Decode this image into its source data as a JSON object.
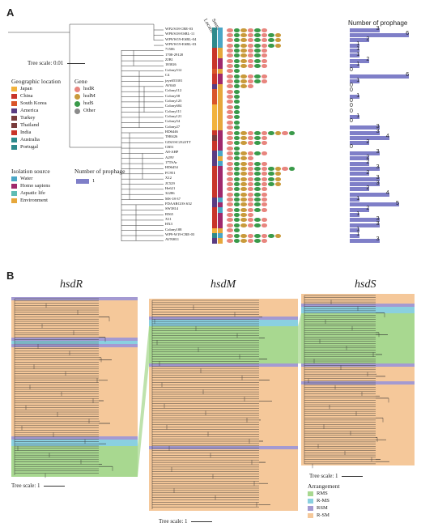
{
  "panel_a": {
    "label": "A",
    "column_headers": [
      "Location",
      "Source"
    ],
    "tree_scale": "Tree scale: 0.01",
    "bars_title": "Number of prophage",
    "strains": [
      {
        "name": "WP2/S18-CRE-03",
        "loc": "#2e8a8c",
        "src": "#4aa6c6",
        "genes": 3,
        "prophage": 3
      },
      {
        "name": "WP8/S18-ESBL-11",
        "loc": "#2e8a8c",
        "src": "#4aa6c6",
        "genes": 4,
        "prophage": 6
      },
      {
        "name": "WP9/W19-ESBL-04",
        "loc": "#2e8a8c",
        "src": "#4aa6c6",
        "genes": 4,
        "prophage": 2
      },
      {
        "name": "WP9/W19-ESBL-03",
        "loc": "#2e8a8c",
        "src": "#4aa6c6",
        "genes": 4,
        "prophage": 1
      },
      {
        "name": "71506",
        "loc": "#c9352a",
        "src": "#e6a73b",
        "genes": 3,
        "prophage": 1
      },
      {
        "name": "1708-29120",
        "loc": "#c9352a",
        "src": "#e6a73b",
        "genes": 3,
        "prophage": 1
      },
      {
        "name": "ZJB1",
        "loc": "#c9352a",
        "src": "#a0286c",
        "genes": 3,
        "prophage": 2
      },
      {
        "name": "183026",
        "loc": "#c9352a",
        "src": "#a0286c",
        "genes": 3,
        "prophage": 1
      },
      {
        "name": "Colony512",
        "loc": "#d9552a",
        "src": "#e6a73b",
        "genes": 1,
        "prophage": 0
      },
      {
        "name": "C4",
        "loc": "#c9352a",
        "src": "#a0286c",
        "genes": 3,
        "prophage": 6
      },
      {
        "name": "jzyz653301",
        "loc": "#c9352a",
        "src": "#a0286c",
        "genes": 3,
        "prophage": 1
      },
      {
        "name": "AV040",
        "loc": "#5a3c82",
        "src": "#e6a73b",
        "genes": 2,
        "prophage": 0
      },
      {
        "name": "Colony112",
        "loc": "#d9552a",
        "src": "#e6a73b",
        "genes": 1,
        "prophage": 0
      },
      {
        "name": "Colony58",
        "loc": "#d9552a",
        "src": "#e6a73b",
        "genes": 1,
        "prophage": 1
      },
      {
        "name": "Colony125",
        "loc": "#d9552a",
        "src": "#e6a73b",
        "genes": 1,
        "prophage": 0
      },
      {
        "name": "Colony604",
        "loc": "#f2b23c",
        "src": "#e6a73b",
        "genes": 1,
        "prophage": 0
      },
      {
        "name": "Colony111",
        "loc": "#f2b23c",
        "src": "#e6a73b",
        "genes": 1,
        "prophage": 0
      },
      {
        "name": "Colony121",
        "loc": "#f2b23c",
        "src": "#e6a73b",
        "genes": 1,
        "prophage": 1
      },
      {
        "name": "Colony54",
        "loc": "#f2b23c",
        "src": "#e6a73b",
        "genes": 1,
        "prophage": 0
      },
      {
        "name": "Colony27",
        "loc": "#f2b23c",
        "src": "#e6a73b",
        "genes": 1,
        "prophage": 3
      },
      {
        "name": "HD6446",
        "loc": "#c9352a",
        "src": "#a0286c",
        "genes": 5,
        "prophage": 3
      },
      {
        "name": "TH0426",
        "loc": "#7a3c3c",
        "src": "#a0286c",
        "genes": 3,
        "prophage": 4
      },
      {
        "name": "GD21SC2322TT",
        "loc": "#c9352a",
        "src": "#a0286c",
        "genes": 3,
        "prophage": 2
      },
      {
        "name": "CB51",
        "loc": "#c9352a",
        "src": "#a0286c",
        "genes": 1,
        "prophage": 0
      },
      {
        "name": "A8-AHP",
        "loc": "#5a3c82",
        "src": "#4aa6c6",
        "genes": 3,
        "prophage": 3
      },
      {
        "name": "A29V",
        "loc": "#5a3c82",
        "src": "#e6a73b",
        "genes": 2,
        "prophage": 2
      },
      {
        "name": "17TSAr",
        "loc": "#5a3c82",
        "src": "#4aa6c6",
        "genes": 3,
        "prophage": 2
      },
      {
        "name": "HD6454",
        "loc": "#c9352a",
        "src": "#a0286c",
        "genes": 5,
        "prophage": 3
      },
      {
        "name": "FC951",
        "loc": "#c9352a",
        "src": "#a0286c",
        "genes": 4,
        "prophage": 2
      },
      {
        "name": "X12",
        "loc": "#c9352a",
        "src": "#a0286c",
        "genes": 4,
        "prophage": 3
      },
      {
        "name": "JC529",
        "loc": "#c9352a",
        "src": "#a0286c",
        "genes": 4,
        "prophage": 3
      },
      {
        "name": "He621",
        "loc": "#c9352a",
        "src": "#a0286c",
        "genes": 3,
        "prophage": 2
      },
      {
        "name": "32286",
        "loc": "#c9352a",
        "src": "#a0286c",
        "genes": 3,
        "prophage": 4
      },
      {
        "name": "MS-18-37",
        "loc": "#5a3c82",
        "src": "#4aa6c6",
        "genes": 3,
        "prophage": 1
      },
      {
        "name": "FDAARGOS 632",
        "loc": "#5a3c82",
        "src": "#a0286c",
        "genes": 3,
        "prophage": 5
      },
      {
        "name": "SW3814",
        "loc": "#c9352a",
        "src": "#4aa6c6",
        "genes": 3,
        "prophage": 2
      },
      {
        "name": "B565",
        "loc": "#c9352a",
        "src": "#a0286c",
        "genes": 2,
        "prophage": 1
      },
      {
        "name": "X11",
        "loc": "#c9352a",
        "src": "#a0286c",
        "genes": 3,
        "prophage": 3
      },
      {
        "name": "HX3",
        "loc": "#c9352a",
        "src": "#a0286c",
        "genes": 3,
        "prophage": 3
      },
      {
        "name": "Colony108",
        "loc": "#f2b23c",
        "src": "#e6a73b",
        "genes": 1,
        "prophage": 1
      },
      {
        "name": "WP9-W19-CRE-03",
        "loc": "#2e8a8c",
        "src": "#4aa6c6",
        "genes": 4,
        "prophage": 1
      },
      {
        "name": "AVNH11",
        "loc": "#5a3c82",
        "src": "#e6a73b",
        "genes": 3,
        "prophage": 3
      }
    ],
    "legend_geo": {
      "title": "Geographic location",
      "items": [
        {
          "label": "Japan",
          "color": "#f2b23c"
        },
        {
          "label": "China",
          "color": "#c9352a"
        },
        {
          "label": "South Korea",
          "color": "#d9552a"
        },
        {
          "label": "America",
          "color": "#5a3c82"
        },
        {
          "label": "Turkey",
          "color": "#7a3c3c"
        },
        {
          "label": "Thailand",
          "color": "#7a3c3c"
        },
        {
          "label": "India",
          "color": "#c9352a"
        },
        {
          "label": "Australia",
          "color": "#2e8a8c"
        },
        {
          "label": "Portugal",
          "color": "#2e8a8c"
        }
      ]
    },
    "legend_gene": {
      "title": "Gene",
      "items": [
        {
          "label": "hsdR",
          "color": "#e8857e"
        },
        {
          "label": "hsdM",
          "color": "#c99a3b"
        },
        {
          "label": "hsdS",
          "color": "#3a9a4a"
        },
        {
          "label": "Other",
          "color": "#8a8a8a"
        }
      ]
    },
    "legend_source": {
      "title": "Isolation source",
      "items": [
        {
          "label": "Water",
          "color": "#4aa6c6"
        },
        {
          "label": "Homo sapiens",
          "color": "#a0286c"
        },
        {
          "label": "Aquatic life",
          "color": "#5fbcb4"
        },
        {
          "label": "Environment",
          "color": "#e6a73b"
        }
      ]
    },
    "legend_prophage": {
      "title": "Number of prophage",
      "value": "1"
    }
  },
  "panel_b": {
    "label": "B",
    "trees": [
      {
        "title": "hsdR",
        "scale": "Tree scale: 1"
      },
      {
        "title": "hsdM",
        "scale": "Tree scale: 1"
      },
      {
        "title": "hsdS",
        "scale": "Tree scale: 1"
      }
    ],
    "arrangement": {
      "title": "Arrangement",
      "items": [
        {
          "label": "RMS",
          "color": "#a8d890"
        },
        {
          "label": "R-MS",
          "color": "#8ad0e0"
        },
        {
          "label": "RSM",
          "color": "#a49ad2"
        },
        {
          "label": "R-SM",
          "color": "#f5c89a"
        }
      ]
    }
  },
  "colors": {
    "bar": "#7f7fc8",
    "hsdR": "#e8857e",
    "hsdM": "#c99a3b",
    "hsdS": "#3a9a4a",
    "other": "#8a8a8a"
  }
}
